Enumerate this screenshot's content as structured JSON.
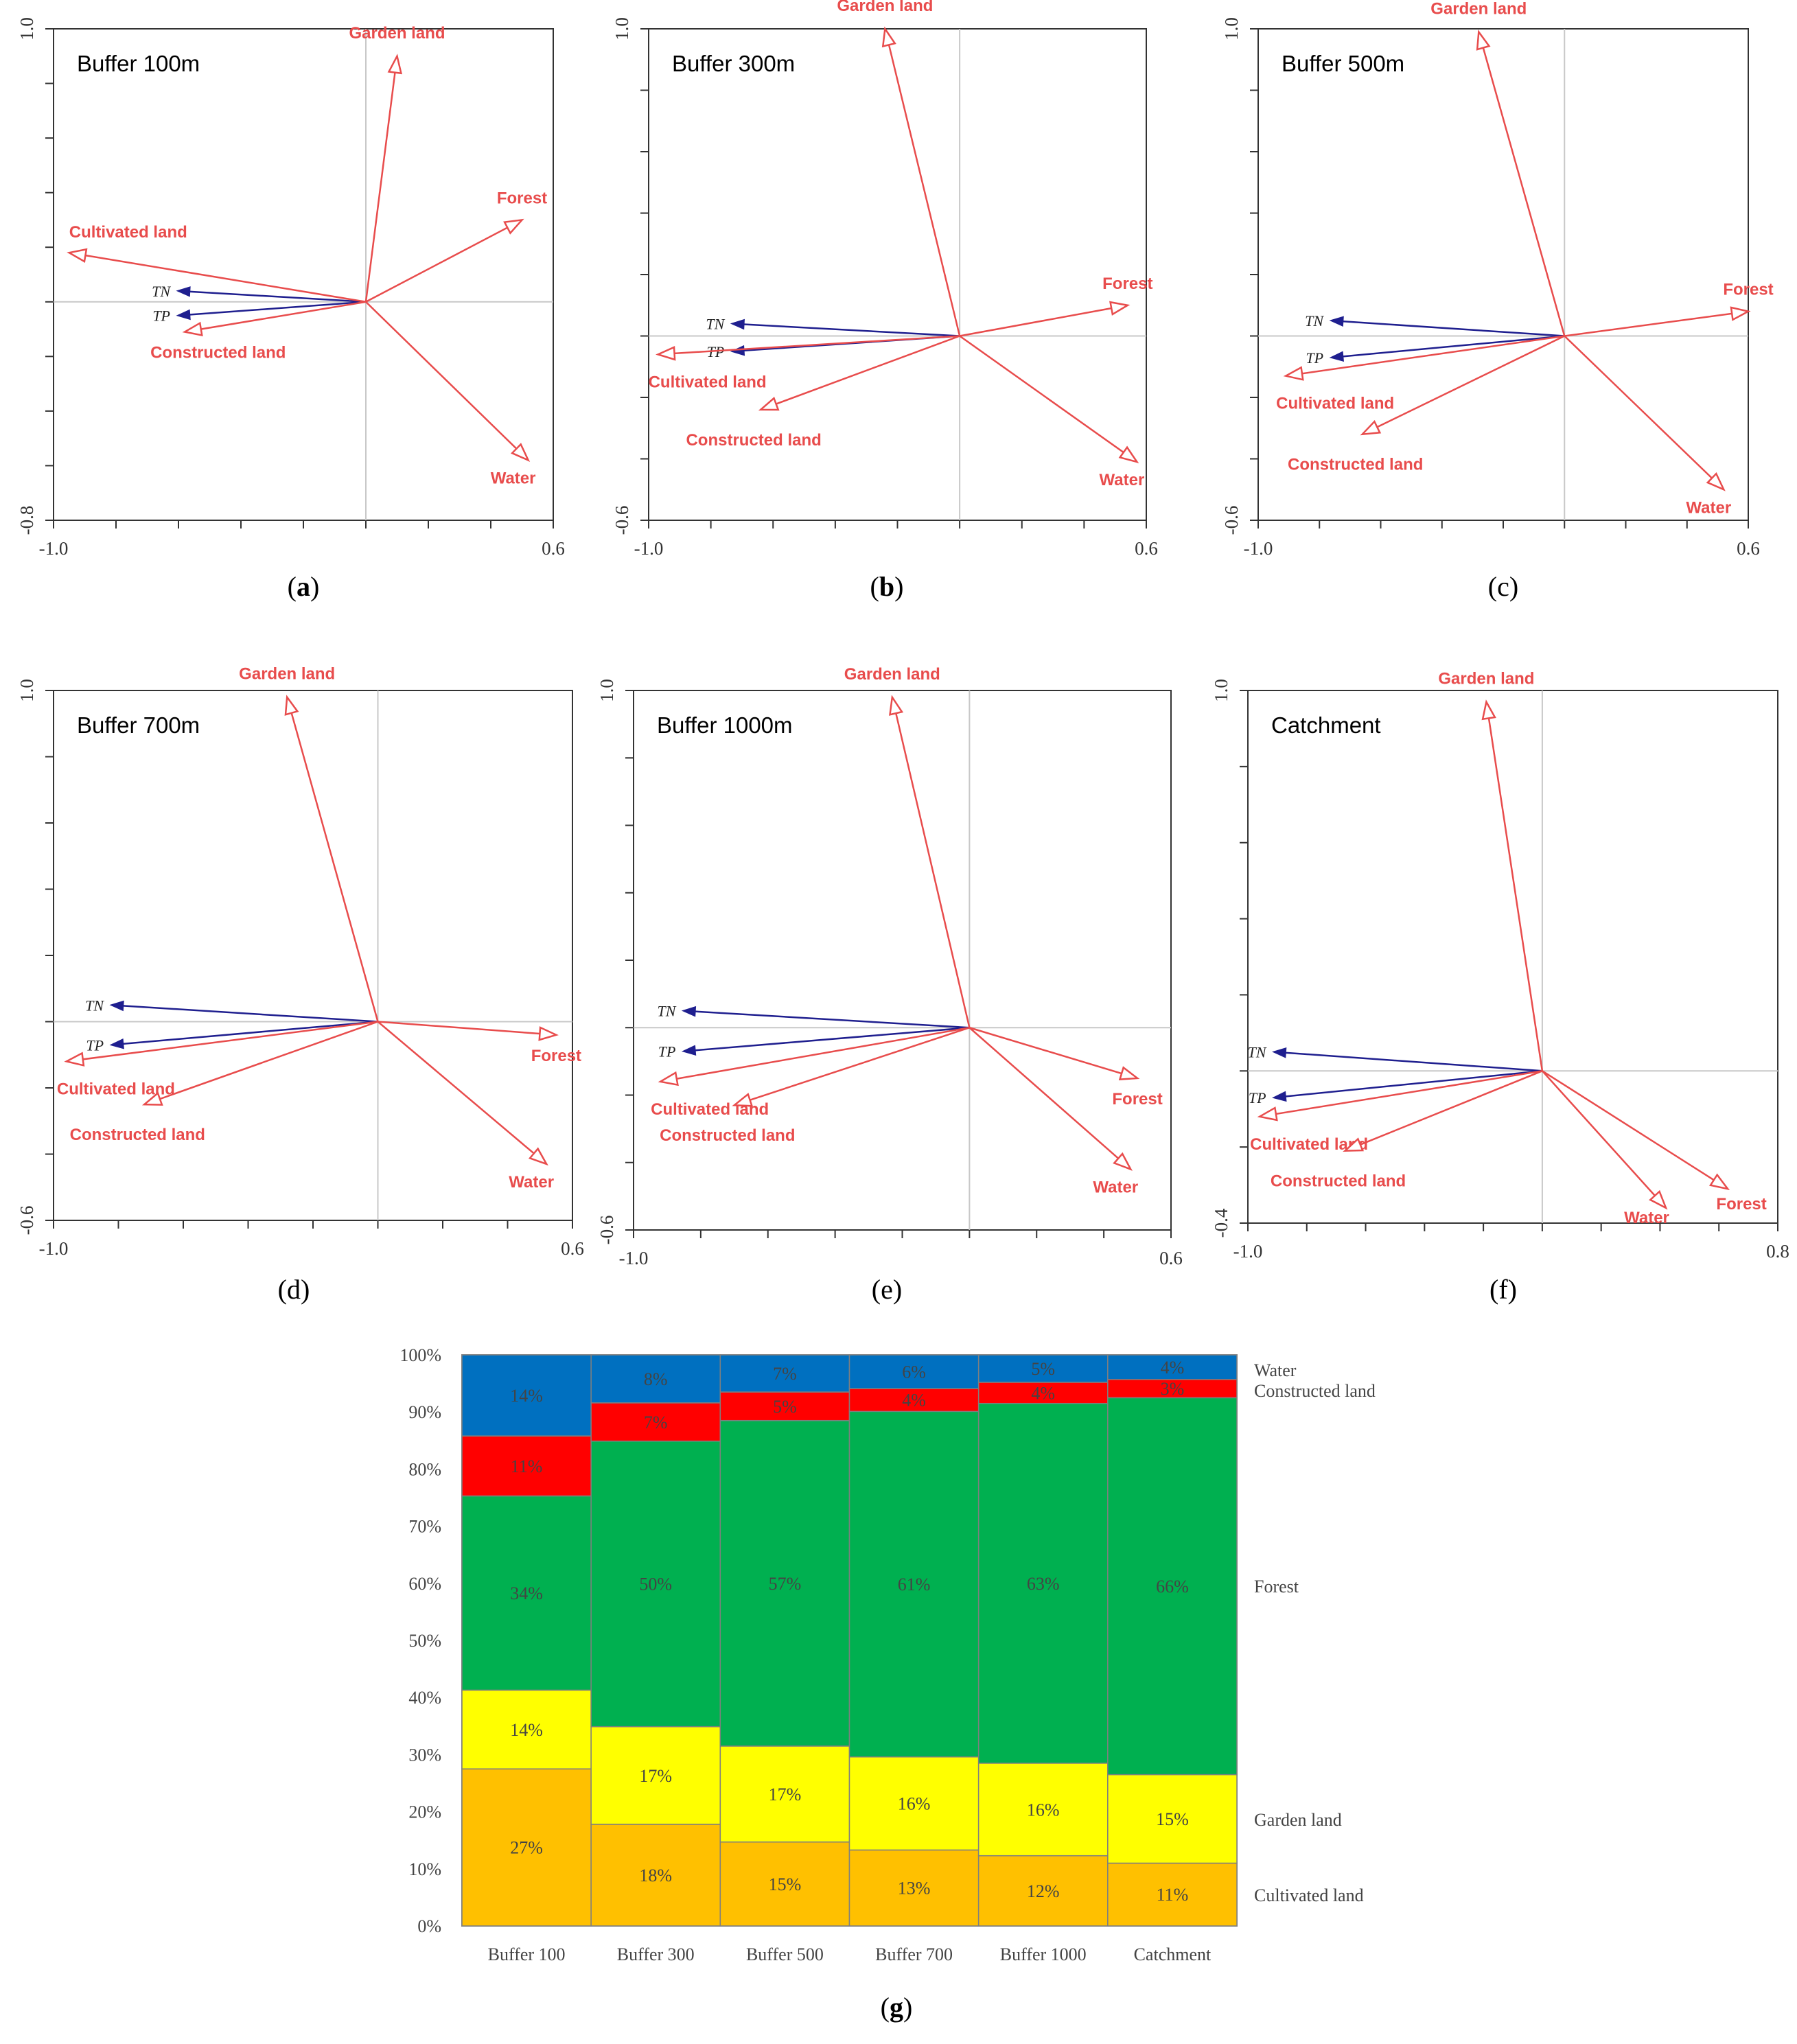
{
  "colors": {
    "env_arrow": "#e84c4c",
    "resp_arrow": "#1f1f8f",
    "water": "#0070c0",
    "constructed_land": "#ff0000",
    "forest": "#00b050",
    "garden_land": "#ffff00",
    "cultivated_land": "#ffc000"
  },
  "chart_data": [
    {
      "id": "a",
      "type": "biplot",
      "title": "Buffer 100m",
      "caption": "a",
      "x_range": [
        -1.0,
        0.6
      ],
      "y_range": [
        -0.8,
        1.0
      ],
      "x_tick_labels": [
        "-1.0",
        "0.6"
      ],
      "y_tick_labels": [
        "1.0",
        "-0.8"
      ],
      "environment": [
        {
          "name": "Garden land",
          "x": 0.1,
          "y": 0.9
        },
        {
          "name": "Forest",
          "x": 0.5,
          "y": 0.3
        },
        {
          "name": "Cultivated land",
          "x": -0.95,
          "y": 0.18
        },
        {
          "name": "Constructed land",
          "x": -0.58,
          "y": -0.11
        },
        {
          "name": "Water",
          "x": 0.52,
          "y": -0.58
        }
      ],
      "responses": [
        {
          "name": "TN",
          "x": -0.6,
          "y": 0.04
        },
        {
          "name": "TP",
          "x": -0.6,
          "y": -0.05
        }
      ]
    },
    {
      "id": "b",
      "type": "biplot",
      "title": "Buffer 300m",
      "caption": "b",
      "x_range": [
        -1.0,
        0.6
      ],
      "y_range": [
        -0.6,
        1.0
      ],
      "x_tick_labels": [
        "-1.0",
        "0.6"
      ],
      "y_tick_labels": [
        "1.0",
        "-0.6"
      ],
      "environment": [
        {
          "name": "Garden land",
          "x": -0.24,
          "y": 1.0
        },
        {
          "name": "Forest",
          "x": 0.54,
          "y": 0.1
        },
        {
          "name": "Cultivated land",
          "x": -0.97,
          "y": -0.06
        },
        {
          "name": "Constructed land",
          "x": -0.64,
          "y": -0.24
        },
        {
          "name": "Water",
          "x": 0.57,
          "y": -0.41
        }
      ],
      "responses": [
        {
          "name": "TN",
          "x": -0.73,
          "y": 0.04
        },
        {
          "name": "TP",
          "x": -0.73,
          "y": -0.05
        }
      ]
    },
    {
      "id": "c",
      "type": "biplot",
      "title": "Buffer 500m",
      "caption": "c",
      "x_range": [
        -1.0,
        0.6
      ],
      "y_range": [
        -0.6,
        1.0
      ],
      "x_tick_labels": [
        "-1.0",
        "0.6"
      ],
      "y_tick_labels": [
        "1.0",
        "-0.6"
      ],
      "environment": [
        {
          "name": "Garden land",
          "x": -0.28,
          "y": 0.99
        },
        {
          "name": "Forest",
          "x": 0.6,
          "y": 0.08
        },
        {
          "name": "Cultivated land",
          "x": -0.91,
          "y": -0.13
        },
        {
          "name": "Constructed land",
          "x": -0.66,
          "y": -0.32
        },
        {
          "name": "Water",
          "x": 0.52,
          "y": -0.5
        }
      ],
      "responses": [
        {
          "name": "TN",
          "x": -0.76,
          "y": 0.05
        },
        {
          "name": "TP",
          "x": -0.76,
          "y": -0.07
        }
      ]
    },
    {
      "id": "d",
      "type": "biplot",
      "title": "Buffer 700m",
      "caption": "d",
      "x_range": [
        -1.0,
        0.6
      ],
      "y_range": [
        -0.6,
        1.0
      ],
      "x_tick_labels": [
        "-1.0",
        "0.6"
      ],
      "y_tick_labels": [
        "1.0",
        "-0.6"
      ],
      "environment": [
        {
          "name": "Garden land",
          "x": -0.28,
          "y": 0.98
        },
        {
          "name": "Forest",
          "x": 0.55,
          "y": -0.04
        },
        {
          "name": "Cultivated land",
          "x": -0.96,
          "y": -0.12
        },
        {
          "name": "Constructed land",
          "x": -0.72,
          "y": -0.25
        },
        {
          "name": "Water",
          "x": 0.52,
          "y": -0.43
        }
      ],
      "responses": [
        {
          "name": "TN",
          "x": -0.82,
          "y": 0.05
        },
        {
          "name": "TP",
          "x": -0.82,
          "y": -0.07
        }
      ]
    },
    {
      "id": "e",
      "type": "biplot",
      "title": "Buffer 1000m",
      "caption": "e",
      "x_range": [
        -1.0,
        0.6
      ],
      "y_range": [
        -0.6,
        1.0
      ],
      "x_tick_labels": [
        "-1.0",
        "0.6"
      ],
      "y_tick_labels": [
        "1.0",
        "-0.6"
      ],
      "environment": [
        {
          "name": "Garden land",
          "x": -0.23,
          "y": 0.98
        },
        {
          "name": "Forest",
          "x": 0.5,
          "y": -0.15
        },
        {
          "name": "Cultivated land",
          "x": -0.92,
          "y": -0.16
        },
        {
          "name": "Constructed land",
          "x": -0.7,
          "y": -0.23
        },
        {
          "name": "Water",
          "x": 0.48,
          "y": -0.42
        }
      ],
      "responses": [
        {
          "name": "TN",
          "x": -0.85,
          "y": 0.05
        },
        {
          "name": "TP",
          "x": -0.85,
          "y": -0.07
        }
      ]
    },
    {
      "id": "f",
      "type": "biplot",
      "title": "Catchment",
      "caption": "f",
      "x_range": [
        -1.0,
        0.8
      ],
      "y_range": [
        -0.4,
        1.0
      ],
      "x_tick_labels": [
        "-1.0",
        "0.8"
      ],
      "y_tick_labels": [
        "1.0",
        "-0.4"
      ],
      "environment": [
        {
          "name": "Garden land",
          "x": -0.19,
          "y": 0.97
        },
        {
          "name": "Forest",
          "x": 0.63,
          "y": -0.31
        },
        {
          "name": "Cultivated land",
          "x": -0.96,
          "y": -0.12
        },
        {
          "name": "Constructed land",
          "x": -0.67,
          "y": -0.21
        },
        {
          "name": "Water",
          "x": 0.42,
          "y": -0.36
        }
      ],
      "responses": [
        {
          "name": "TN",
          "x": -0.91,
          "y": 0.05
        },
        {
          "name": "TP",
          "x": -0.91,
          "y": -0.07
        }
      ]
    },
    {
      "id": "g",
      "type": "stacked_bar_100",
      "caption": "g",
      "categories": [
        "Buffer 100",
        "Buffer 300",
        "Buffer 500",
        "Buffer 700",
        "Buffer 1000",
        "Catchment"
      ],
      "y_tick_labels": [
        "0%",
        "10%",
        "20%",
        "30%",
        "40%",
        "50%",
        "60%",
        "70%",
        "80%",
        "90%",
        "100%"
      ],
      "ylim": [
        0,
        100
      ],
      "series": [
        {
          "name": "Cultivated land",
          "color_key": "cultivated_land",
          "values": [
            27.5,
            17.8,
            14.7,
            13.3,
            12.3,
            11.0
          ],
          "labels": [
            "27%",
            "18%",
            "15%",
            "13%",
            "12%",
            "11%"
          ]
        },
        {
          "name": "Garden land",
          "color_key": "garden_land",
          "values": [
            13.8,
            17.1,
            16.8,
            16.3,
            16.2,
            15.5
          ],
          "labels": [
            "14%",
            "17%",
            "17%",
            "16%",
            "16%",
            "15%"
          ]
        },
        {
          "name": "Forest",
          "color_key": "forest",
          "values": [
            34.0,
            50.0,
            57.0,
            60.5,
            63.0,
            66.0
          ],
          "labels": [
            "34%",
            "50%",
            "57%",
            "61%",
            "63%",
            "66%"
          ]
        },
        {
          "name": "Constructed land",
          "color_key": "constructed_land",
          "values": [
            10.5,
            6.7,
            5.0,
            4.0,
            3.7,
            3.2
          ],
          "labels": [
            "11%",
            "7%",
            "5%",
            "4%",
            "4%",
            "3%"
          ]
        },
        {
          "name": "Water",
          "color_key": "water",
          "values": [
            14.2,
            8.4,
            6.5,
            5.9,
            4.8,
            4.3
          ],
          "labels": [
            "14%",
            "8%",
            "7%",
            "6%",
            "5%",
            "4%"
          ]
        }
      ],
      "legend": [
        "Water",
        "Constructed land",
        "Forest",
        "Garden land",
        "Cultivated land"
      ]
    }
  ]
}
